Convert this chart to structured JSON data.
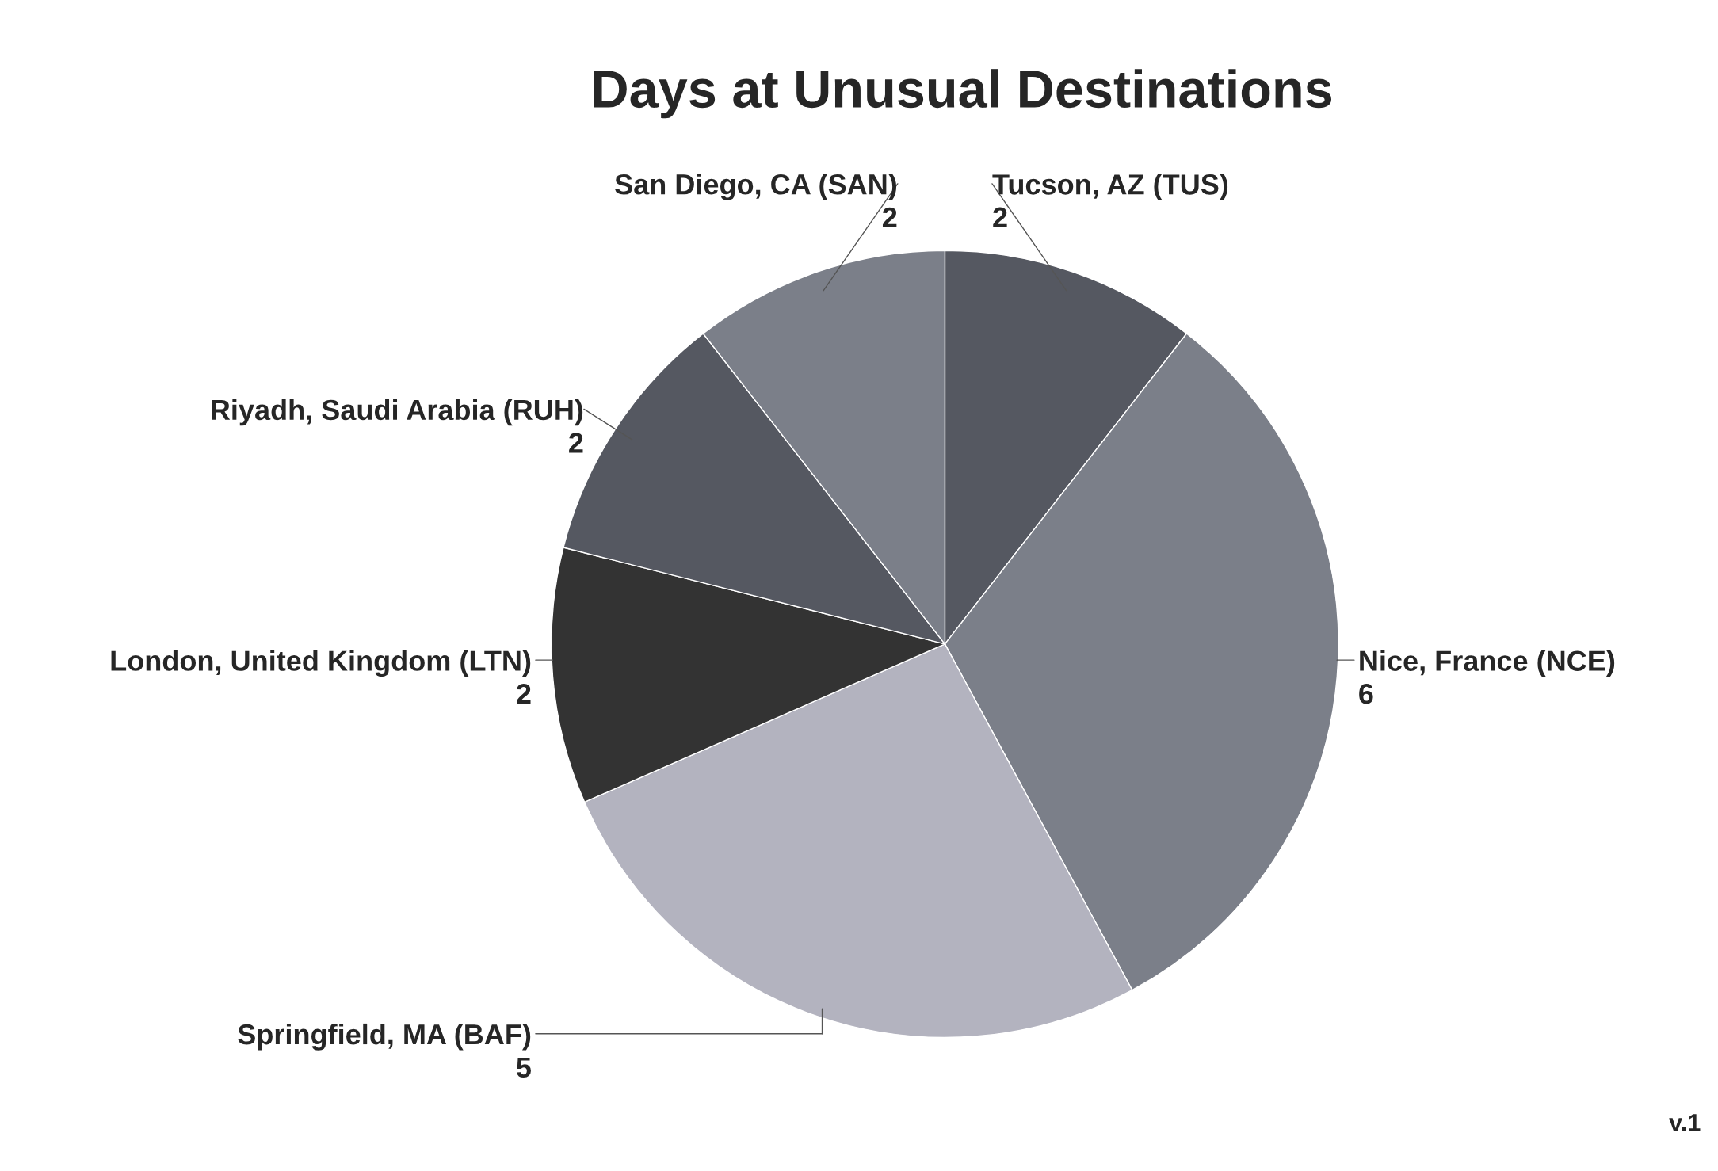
{
  "chart_data": {
    "type": "pie",
    "title": "Days at Unusual Destinations",
    "categories": [
      "Tucson, AZ (TUS)",
      "Nice, France (NCE)",
      "Springfield, MA (BAF)",
      "London, United Kingdom (LTN)",
      "Riyadh, Saudi Arabia (RUH)",
      "San Diego, CA (SAN)"
    ],
    "values": [
      2,
      6,
      5,
      2,
      2,
      2
    ],
    "colors": [
      "#555861",
      "#7b7f89",
      "#b3b3bf",
      "#333333",
      "#555861",
      "#7b7f89"
    ],
    "data_labels": true,
    "annotations": [
      "v.1"
    ]
  }
}
